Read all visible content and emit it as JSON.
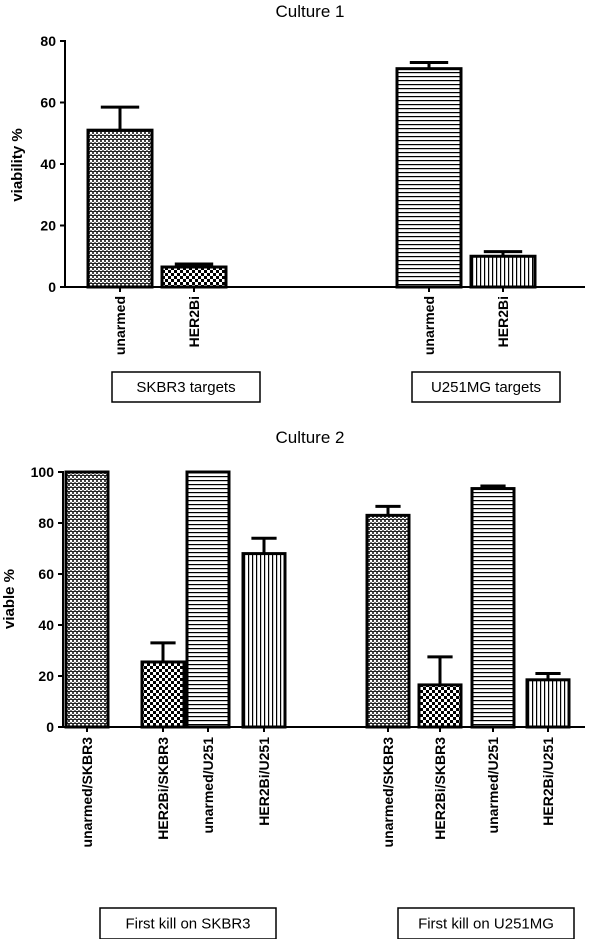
{
  "chart_data": [
    {
      "type": "bar",
      "title": "Culture 1",
      "ylabel": "viability %",
      "xlabel": "",
      "ylim": [
        0,
        80
      ],
      "yticks": [
        0,
        20,
        40,
        60,
        80
      ],
      "categories": [
        "unarmed",
        "HER2Bi",
        "unarmed",
        "HER2Bi"
      ],
      "values": [
        51,
        6.5,
        71,
        10
      ],
      "error": [
        7.5,
        1,
        2,
        1.5
      ],
      "patterns": [
        "crosshatch",
        "checker",
        "hstripes",
        "vstripes"
      ],
      "groups": [
        {
          "label": "SKBR3 targets",
          "members": [
            0,
            1
          ]
        },
        {
          "label": "U251MG targets",
          "members": [
            2,
            3
          ]
        }
      ]
    },
    {
      "type": "bar",
      "title": "Culture 2",
      "ylabel": "viable %",
      "xlabel": "",
      "ylim": [
        0,
        100
      ],
      "yticks": [
        0,
        20,
        40,
        60,
        80,
        100
      ],
      "categories": [
        "unarmed/SKBR3",
        "HER2Bi/SKBR3",
        "unarmed/U251",
        "HER2Bi/U251",
        "unarmed/SKBR3",
        "HER2Bi/SKBR3",
        "unarmed/U251",
        "HER2Bi/U251"
      ],
      "values": [
        100,
        25.5,
        100,
        68,
        83,
        16.5,
        93.5,
        18.5
      ],
      "error": [
        0,
        7.5,
        0,
        6,
        3.5,
        11,
        1,
        2.5
      ],
      "patterns": [
        "crosshatch",
        "checker",
        "hstripes",
        "vstripes",
        "crosshatch",
        "checker",
        "hstripes",
        "vstripes"
      ],
      "groups": [
        {
          "label": "First kill on SKBR3",
          "members": [
            0,
            1,
            2,
            3
          ]
        },
        {
          "label": "First kill on U251MG",
          "members": [
            4,
            5,
            6,
            7
          ]
        }
      ]
    }
  ]
}
